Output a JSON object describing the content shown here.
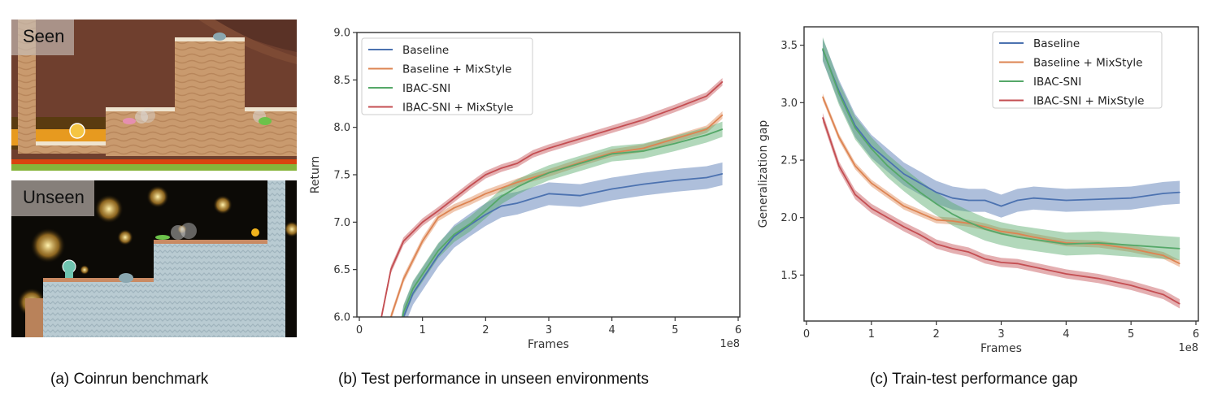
{
  "panels": {
    "a": {
      "caption": "(a) Coinrun benchmark",
      "seen_label": "Seen",
      "unseen_label": "Unseen"
    },
    "b": {
      "caption": "(b) Test performance in unseen environments"
    },
    "c": {
      "caption": "(c) Train-test performance gap"
    }
  },
  "colors": {
    "Baseline": "#4c72b0",
    "Baseline + MixStyle": "#dd8452",
    "IBAC-SNI": "#55a868",
    "IBAC-SNI + MixStyle": "#c44e52"
  },
  "chart_data": [
    {
      "type": "line",
      "title": "",
      "xlabel": "Frames",
      "ylabel": "Return",
      "x_offset_label": "1e8",
      "xlim": [
        0,
        6
      ],
      "ylim": [
        6.0,
        9.0
      ],
      "xticks": [
        "0",
        "1",
        "2",
        "3",
        "4",
        "5",
        "6"
      ],
      "yticks": [
        "6.0",
        "6.5",
        "7.0",
        "7.5",
        "8.0",
        "8.5",
        "9.0"
      ],
      "legend_position": "top-left",
      "x": [
        0.35,
        0.5,
        0.7,
        0.85,
        1.0,
        1.25,
        1.5,
        1.75,
        2.0,
        2.25,
        2.5,
        2.75,
        3.0,
        3.5,
        4.0,
        4.5,
        5.0,
        5.5,
        5.75
      ],
      "series": [
        {
          "name": "Baseline",
          "values": [
            null,
            null,
            6.0,
            6.25,
            6.4,
            6.65,
            6.85,
            6.97,
            7.08,
            7.17,
            7.2,
            7.25,
            7.3,
            7.28,
            7.35,
            7.4,
            7.44,
            7.47,
            7.51
          ],
          "band": 0.12
        },
        {
          "name": "Baseline + MixStyle",
          "values": [
            null,
            6.0,
            6.4,
            6.6,
            6.8,
            7.05,
            7.15,
            7.22,
            7.3,
            7.36,
            7.42,
            7.47,
            7.52,
            7.63,
            7.73,
            7.78,
            7.88,
            7.98,
            8.13
          ],
          "band": 0.04
        },
        {
          "name": "IBAC-SNI",
          "values": [
            null,
            null,
            6.05,
            6.3,
            6.45,
            6.7,
            6.87,
            6.98,
            7.12,
            7.27,
            7.37,
            7.45,
            7.52,
            7.62,
            7.72,
            7.75,
            7.83,
            7.92,
            7.98
          ],
          "band": 0.08
        },
        {
          "name": "IBAC-SNI + MixStyle",
          "values": [
            6.0,
            6.5,
            6.8,
            6.9,
            7.0,
            7.12,
            7.25,
            7.38,
            7.5,
            7.57,
            7.62,
            7.72,
            7.78,
            7.88,
            7.98,
            8.08,
            8.2,
            8.33,
            8.48
          ],
          "band": 0.04
        }
      ]
    },
    {
      "type": "line",
      "title": "",
      "xlabel": "Frames",
      "ylabel": "Generalization gap",
      "x_offset_label": "1e8",
      "xlim": [
        0,
        6
      ],
      "ylim": [
        1.1,
        3.66
      ],
      "xticks": [
        "0",
        "1",
        "2",
        "3",
        "4",
        "5",
        "6"
      ],
      "yticks": [
        "1.5",
        "2.0",
        "2.5",
        "3.0",
        "3.5"
      ],
      "legend_position": "top-right",
      "x": [
        0.25,
        0.5,
        0.75,
        1.0,
        1.25,
        1.5,
        1.75,
        2.0,
        2.25,
        2.5,
        2.75,
        3.0,
        3.25,
        3.5,
        4.0,
        4.5,
        5.0,
        5.5,
        5.75
      ],
      "series": [
        {
          "name": "Baseline",
          "values": [
            3.46,
            3.1,
            2.8,
            2.62,
            2.5,
            2.38,
            2.3,
            2.22,
            2.17,
            2.15,
            2.15,
            2.1,
            2.15,
            2.17,
            2.15,
            2.16,
            2.17,
            2.21,
            2.22
          ],
          "band": 0.1
        },
        {
          "name": "Baseline + MixStyle",
          "values": [
            3.05,
            2.7,
            2.45,
            2.3,
            2.2,
            2.1,
            2.04,
            1.98,
            1.97,
            1.95,
            1.92,
            1.88,
            1.86,
            1.83,
            1.78,
            1.77,
            1.73,
            1.67,
            1.6
          ],
          "band": 0.03
        },
        {
          "name": "IBAC-SNI",
          "values": [
            3.47,
            3.08,
            2.78,
            2.6,
            2.45,
            2.33,
            2.22,
            2.12,
            2.03,
            1.96,
            1.9,
            1.86,
            1.83,
            1.81,
            1.77,
            1.78,
            1.76,
            1.74,
            1.73
          ],
          "band": 0.1
        },
        {
          "name": "IBAC-SNI + MixStyle",
          "values": [
            2.87,
            2.45,
            2.2,
            2.08,
            2.0,
            1.92,
            1.85,
            1.77,
            1.73,
            1.7,
            1.64,
            1.61,
            1.6,
            1.57,
            1.51,
            1.47,
            1.41,
            1.33,
            1.25
          ],
          "band": 0.04
        }
      ]
    }
  ]
}
